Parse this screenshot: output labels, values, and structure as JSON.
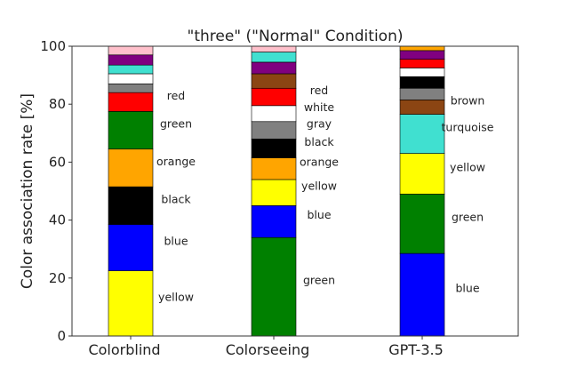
{
  "chart_data": {
    "type": "bar",
    "stacked": true,
    "title": "\"three\" (\"Normal\" Condition)",
    "xlabel": "",
    "ylabel": "Color association rate [%]",
    "ylim": [
      0,
      100
    ],
    "yticks": [
      "0",
      "20",
      "40",
      "60",
      "80",
      "100"
    ],
    "grid": false,
    "categories": [
      {
        "name": "Colorblind",
        "segments": [
          {
            "color_name": "yellow",
            "value": 22.5,
            "fill": "#ffff00",
            "label": "yellow"
          },
          {
            "color_name": "blue",
            "value": 16.0,
            "fill": "#0000ff",
            "label": "blue"
          },
          {
            "color_name": "black",
            "value": 13.0,
            "fill": "#000000",
            "label": "black"
          },
          {
            "color_name": "orange",
            "value": 13.0,
            "fill": "#ffa500",
            "label": "orange"
          },
          {
            "color_name": "green",
            "value": 13.0,
            "fill": "#008000",
            "label": "green"
          },
          {
            "color_name": "red",
            "value": 6.5,
            "fill": "#ff0000",
            "label": "red"
          },
          {
            "color_name": "gray",
            "value": 3.0,
            "fill": "#808080",
            "label": ""
          },
          {
            "color_name": "white",
            "value": 3.5,
            "fill": "#ffffff",
            "label": ""
          },
          {
            "color_name": "turquoise",
            "value": 3.0,
            "fill": "#40e0d0",
            "label": ""
          },
          {
            "color_name": "purple",
            "value": 3.5,
            "fill": "#800080",
            "label": ""
          },
          {
            "color_name": "pink",
            "value": 3.0,
            "fill": "#ffc0cb",
            "label": ""
          }
        ]
      },
      {
        "name": "Colorseeing",
        "segments": [
          {
            "color_name": "green",
            "value": 34.0,
            "fill": "#008000",
            "label": "green"
          },
          {
            "color_name": "blue",
            "value": 11.0,
            "fill": "#0000ff",
            "label": "blue"
          },
          {
            "color_name": "yellow",
            "value": 9.0,
            "fill": "#ffff00",
            "label": "yellow"
          },
          {
            "color_name": "orange",
            "value": 7.5,
            "fill": "#ffa500",
            "label": "orange"
          },
          {
            "color_name": "black",
            "value": 6.5,
            "fill": "#000000",
            "label": "black"
          },
          {
            "color_name": "gray",
            "value": 6.0,
            "fill": "#808080",
            "label": "gray"
          },
          {
            "color_name": "white",
            "value": 5.5,
            "fill": "#ffffff",
            "label": "white"
          },
          {
            "color_name": "red",
            "value": 6.0,
            "fill": "#ff0000",
            "label": "red"
          },
          {
            "color_name": "brown",
            "value": 5.0,
            "fill": "#8b4513",
            "label": ""
          },
          {
            "color_name": "purple",
            "value": 4.0,
            "fill": "#800080",
            "label": ""
          },
          {
            "color_name": "turquoise",
            "value": 3.5,
            "fill": "#40e0d0",
            "label": ""
          },
          {
            "color_name": "pink",
            "value": 2.0,
            "fill": "#ffc0cb",
            "label": ""
          }
        ]
      },
      {
        "name": "GPT-3.5",
        "segments": [
          {
            "color_name": "blue",
            "value": 28.5,
            "fill": "#0000ff",
            "label": "blue"
          },
          {
            "color_name": "green",
            "value": 20.5,
            "fill": "#008000",
            "label": "green"
          },
          {
            "color_name": "yellow",
            "value": 14.0,
            "fill": "#ffff00",
            "label": "yellow"
          },
          {
            "color_name": "turquoise",
            "value": 13.5,
            "fill": "#40e0d0",
            "label": "turquoise"
          },
          {
            "color_name": "brown",
            "value": 5.0,
            "fill": "#8b4513",
            "label": "brown"
          },
          {
            "color_name": "gray",
            "value": 4.0,
            "fill": "#808080",
            "label": ""
          },
          {
            "color_name": "black",
            "value": 4.0,
            "fill": "#000000",
            "label": ""
          },
          {
            "color_name": "white",
            "value": 3.0,
            "fill": "#ffffff",
            "label": ""
          },
          {
            "color_name": "red",
            "value": 3.0,
            "fill": "#ff0000",
            "label": ""
          },
          {
            "color_name": "purple",
            "value": 3.0,
            "fill": "#800080",
            "label": ""
          },
          {
            "color_name": "orange",
            "value": 1.5,
            "fill": "#ffa500",
            "label": ""
          }
        ]
      }
    ]
  }
}
